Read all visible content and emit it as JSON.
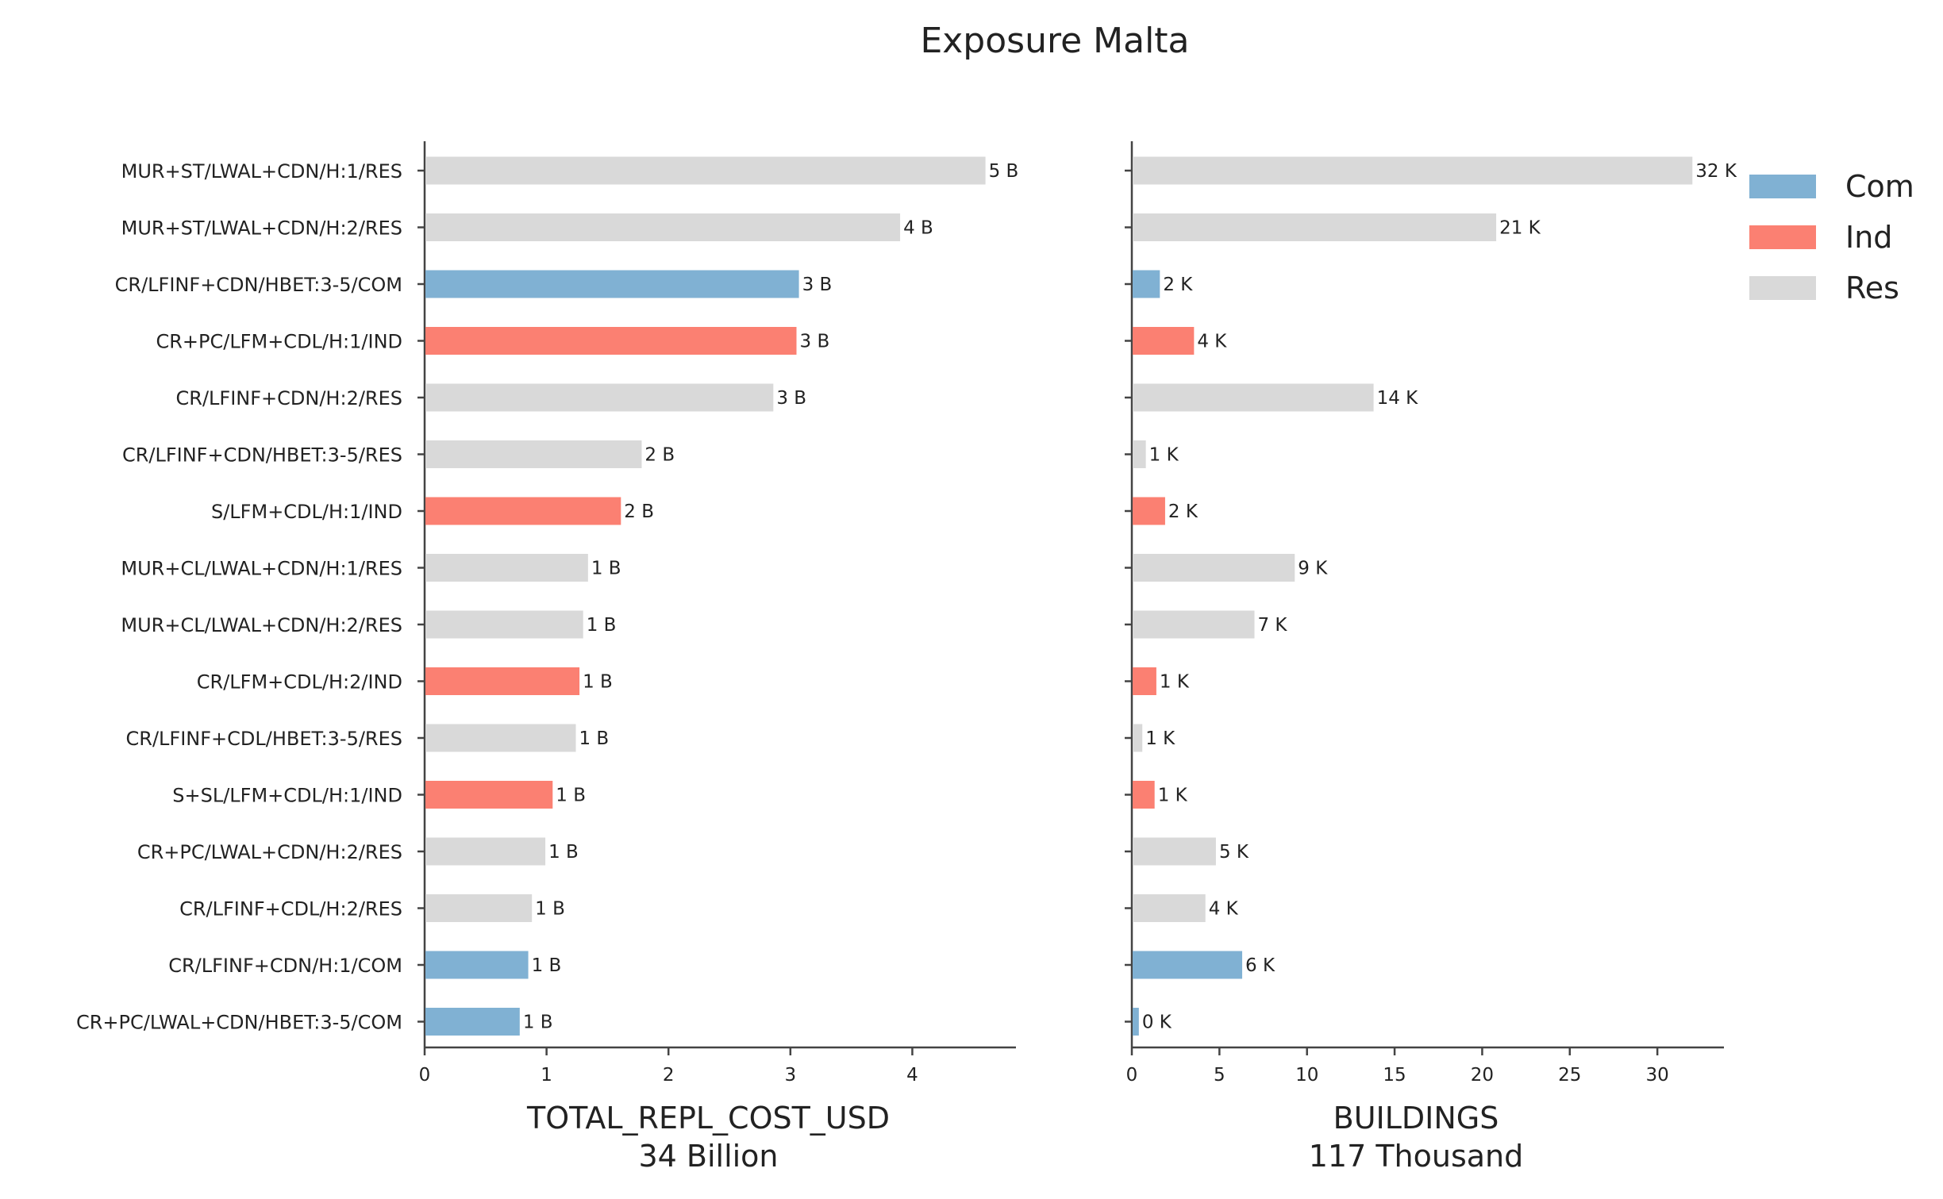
{
  "chart_data": {
    "type": "bar",
    "orientation": "horizontal",
    "title": "Exposure Malta",
    "categories": [
      "MUR+ST/LWAL+CDN/H:1/RES",
      "MUR+ST/LWAL+CDN/H:2/RES",
      "CR/LFINF+CDN/HBET:3-5/COM",
      "CR+PC/LFM+CDL/H:1/IND",
      "CR/LFINF+CDN/H:2/RES",
      "CR/LFINF+CDN/HBET:3-5/RES",
      "S/LFM+CDL/H:1/IND",
      "MUR+CL/LWAL+CDN/H:1/RES",
      "MUR+CL/LWAL+CDN/H:2/RES",
      "CR/LFM+CDL/H:2/IND",
      "CR/LFINF+CDL/HBET:3-5/RES",
      "S+SL/LFM+CDL/H:1/IND",
      "CR+PC/LWAL+CDN/H:2/RES",
      "CR/LFINF+CDL/H:2/RES",
      "CR/LFINF+CDN/H:1/COM",
      "CR+PC/LWAL+CDN/HBET:3-5/COM"
    ],
    "occupancy": [
      "Res",
      "Res",
      "Com",
      "Ind",
      "Res",
      "Res",
      "Ind",
      "Res",
      "Res",
      "Ind",
      "Res",
      "Ind",
      "Res",
      "Res",
      "Com",
      "Com"
    ],
    "colors": {
      "Com": "#80b1d3",
      "Ind": "#fb8072",
      "Res": "#d9d9d9"
    },
    "legend": {
      "entries": [
        "Com",
        "Ind",
        "Res"
      ],
      "placement": "top-right"
    },
    "panels": [
      {
        "xlabel": "TOTAL_REPL_COST_USD",
        "subtitle": "34 Billion",
        "xlim": [
          0,
          4.85
        ],
        "ticks": [
          0,
          1,
          2,
          3,
          4
        ],
        "values": [
          4.6,
          3.9,
          3.07,
          3.05,
          2.86,
          1.78,
          1.61,
          1.34,
          1.3,
          1.27,
          1.24,
          1.05,
          0.99,
          0.88,
          0.85,
          0.78
        ],
        "value_labels": [
          "5 B",
          "4 B",
          "3 B",
          "3 B",
          "3 B",
          "2 B",
          "2 B",
          "1 B",
          "1 B",
          "1 B",
          "1 B",
          "1 B",
          "1 B",
          "1 B",
          "1 B",
          "1 B"
        ]
      },
      {
        "xlabel": "BUILDINGS",
        "subtitle": "117 Thousand",
        "xlim": [
          0,
          33.8
        ],
        "ticks": [
          0,
          5,
          10,
          15,
          20,
          25,
          30
        ],
        "values": [
          32.0,
          20.8,
          1.6,
          3.55,
          13.8,
          0.8,
          1.9,
          9.3,
          7.0,
          1.4,
          0.6,
          1.3,
          4.8,
          4.2,
          6.3,
          0.4
        ],
        "value_labels": [
          "32 K",
          "21 K",
          "2 K",
          "4 K",
          "14 K",
          "1 K",
          "2 K",
          "9 K",
          "7 K",
          "1 K",
          "1 K",
          "1 K",
          "5 K",
          "4 K",
          "6 K",
          "0 K"
        ]
      }
    ]
  }
}
